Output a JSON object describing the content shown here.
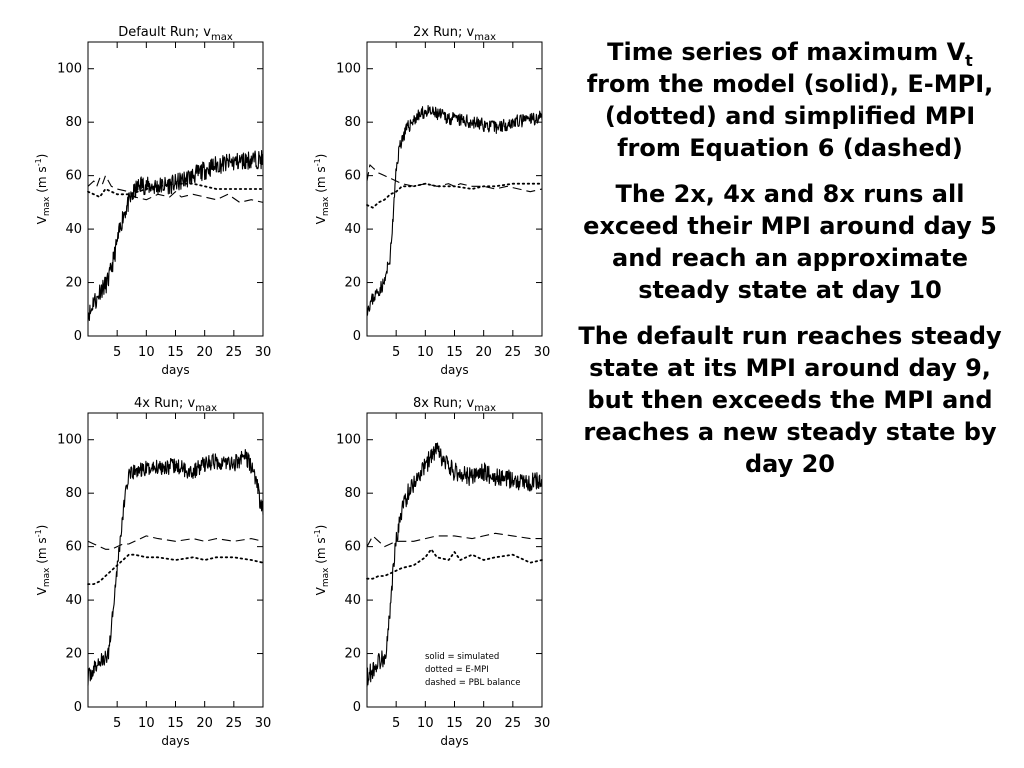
{
  "chart_data": [
    {
      "type": "line",
      "title": "Default Run; v",
      "title_sub": "max",
      "xlabel": "days",
      "ylabel": "V",
      "ylabel_sub": "max",
      "ylabel_units": "(m s",
      "ylabel_units_sup": "-1",
      "ylabel_units_end": ")",
      "xlim": [
        0,
        30
      ],
      "ylim": [
        0,
        110
      ],
      "xticks": [
        5,
        10,
        15,
        20,
        25,
        30
      ],
      "yticks": [
        0,
        20,
        40,
        60,
        80,
        100
      ],
      "series": [
        {
          "style": "solid",
          "noise": 3.5,
          "seed": 11,
          "x": [
            0,
            0.5,
            1,
            1.5,
            2,
            3,
            3.5,
            4,
            5,
            6,
            7,
            8,
            9,
            10,
            12,
            15,
            18,
            20,
            22,
            25,
            28,
            30
          ],
          "y": [
            9,
            9,
            14,
            13,
            17,
            19,
            21,
            25,
            35,
            45,
            50,
            54,
            57,
            56,
            56,
            57,
            60,
            62,
            64,
            65,
            66,
            66
          ]
        },
        {
          "style": "dotted",
          "noise": 0,
          "seed": 0,
          "x": [
            0,
            1,
            2,
            3,
            5,
            7,
            10,
            12,
            15,
            18,
            20,
            22,
            25,
            30
          ],
          "y": [
            54,
            53,
            52,
            55,
            53,
            53,
            55,
            56,
            57,
            57,
            56,
            55,
            55,
            55
          ]
        },
        {
          "style": "dashed",
          "noise": 0,
          "seed": 0,
          "x": [
            0,
            1,
            1.5,
            2,
            2.5,
            3,
            4,
            5,
            7,
            8,
            10,
            12,
            14,
            15,
            16,
            18,
            20,
            22,
            24,
            26,
            28,
            30
          ],
          "y": [
            56,
            58,
            56,
            59,
            57,
            60,
            56,
            55,
            54,
            52,
            51,
            53,
            52,
            54,
            52,
            53,
            52,
            51,
            53,
            50,
            51,
            50
          ]
        }
      ]
    },
    {
      "type": "line",
      "title": "2x Run; v",
      "title_sub": "max",
      "xlabel": "days",
      "ylabel": "V",
      "ylabel_sub": "max",
      "ylabel_units": "(m s",
      "ylabel_units_sup": "-1",
      "ylabel_units_end": ")",
      "xlim": [
        0,
        30
      ],
      "ylim": [
        0,
        110
      ],
      "xticks": [
        5,
        10,
        15,
        20,
        25,
        30
      ],
      "yticks": [
        0,
        20,
        40,
        60,
        80,
        100
      ],
      "series": [
        {
          "style": "solid",
          "noise": 2.5,
          "seed": 23,
          "x": [
            0,
            1,
            2,
            3,
            4,
            4.5,
            5,
            5.5,
            6,
            7,
            8,
            10,
            12,
            15,
            18,
            20,
            22,
            25,
            28,
            30
          ],
          "y": [
            10,
            14,
            17,
            20,
            30,
            45,
            62,
            70,
            74,
            78,
            81,
            84,
            83,
            81,
            80,
            79,
            78,
            80,
            81,
            82
          ]
        },
        {
          "style": "dotted",
          "noise": 0,
          "seed": 0,
          "x": [
            0,
            1,
            2,
            3,
            4,
            5,
            6,
            8,
            10,
            12,
            15,
            18,
            20,
            22,
            25,
            28,
            30
          ],
          "y": [
            49,
            48,
            50,
            51,
            53,
            54,
            56,
            56,
            57,
            56,
            56,
            55,
            56,
            56,
            57,
            57,
            57
          ]
        },
        {
          "style": "dashed",
          "noise": 0,
          "seed": 0,
          "x": [
            0,
            0.5,
            1,
            2,
            3,
            4,
            5,
            6,
            8,
            10,
            12,
            14,
            15,
            16,
            18,
            20,
            22,
            24,
            26,
            28,
            30
          ],
          "y": [
            58,
            64,
            63,
            61,
            60,
            59,
            58,
            57,
            56,
            57,
            56,
            57,
            56,
            57,
            56,
            56,
            55,
            56,
            55,
            54,
            55
          ]
        }
      ]
    },
    {
      "type": "line",
      "title": "4x Run; v",
      "title_sub": "max",
      "xlabel": "days",
      "ylabel": "V",
      "ylabel_sub": "max",
      "ylabel_units": "(m s",
      "ylabel_units_sup": "-1",
      "ylabel_units_end": ")",
      "xlim": [
        0,
        30
      ],
      "ylim": [
        0,
        110
      ],
      "xticks": [
        5,
        10,
        15,
        20,
        25,
        30
      ],
      "yticks": [
        0,
        20,
        40,
        60,
        80,
        100
      ],
      "series": [
        {
          "style": "solid",
          "noise": 3,
          "seed": 37,
          "x": [
            0,
            1,
            2,
            3,
            3.5,
            4,
            4.5,
            5,
            5.5,
            6,
            6.5,
            7,
            8,
            10,
            12,
            15,
            18,
            20,
            22,
            25,
            27,
            28,
            29,
            29.5,
            30
          ],
          "y": [
            11,
            14,
            17,
            18,
            20,
            30,
            42,
            52,
            62,
            72,
            82,
            86,
            88,
            89,
            90,
            90,
            88,
            91,
            92,
            91,
            94,
            90,
            84,
            76,
            74
          ]
        },
        {
          "style": "dotted",
          "noise": 0,
          "seed": 0,
          "x": [
            0,
            1,
            2,
            3,
            4,
            5,
            6,
            7,
            8,
            10,
            12,
            15,
            18,
            20,
            22,
            25,
            28,
            30
          ],
          "y": [
            46,
            46,
            47,
            49,
            51,
            53,
            55,
            57,
            57,
            56,
            56,
            55,
            56,
            55,
            56,
            56,
            55,
            54
          ]
        },
        {
          "style": "dashed",
          "noise": 0,
          "seed": 0,
          "x": [
            0,
            1,
            2,
            3,
            4,
            5,
            6,
            7,
            8,
            10,
            12,
            15,
            18,
            20,
            22,
            25,
            28,
            30
          ],
          "y": [
            62,
            61,
            60,
            59,
            59,
            60,
            61,
            61,
            62,
            64,
            63,
            62,
            63,
            62,
            63,
            62,
            63,
            62
          ]
        }
      ]
    },
    {
      "type": "line",
      "title": "8x Run; v",
      "title_sub": "max",
      "xlabel": "days",
      "ylabel": "V",
      "ylabel_sub": "max",
      "ylabel_units": "(m s",
      "ylabel_units_sup": "-1",
      "ylabel_units_end": ")",
      "xlim": [
        0,
        30
      ],
      "ylim": [
        0,
        110
      ],
      "xticks": [
        5,
        10,
        15,
        20,
        25,
        30
      ],
      "yticks": [
        0,
        20,
        40,
        60,
        80,
        100
      ],
      "legend": {
        "placement": "bottom-right",
        "lines": [
          "solid = simulated",
          "dotted = E-MPI",
          "dashed = PBL balance"
        ]
      },
      "series": [
        {
          "style": "solid",
          "noise": 3.5,
          "seed": 53,
          "x": [
            0,
            1,
            2,
            3,
            3.5,
            4,
            4.5,
            5,
            5.5,
            6,
            7,
            8,
            10,
            11,
            12,
            13,
            15,
            18,
            20,
            22,
            25,
            28,
            30
          ],
          "y": [
            11,
            14,
            17,
            19,
            24,
            38,
            52,
            62,
            68,
            74,
            80,
            84,
            90,
            94,
            96,
            92,
            88,
            86,
            88,
            86,
            85,
            84,
            85
          ]
        },
        {
          "style": "dotted",
          "noise": 0,
          "seed": 0,
          "x": [
            0,
            1,
            2,
            3,
            4,
            5,
            6,
            8,
            10,
            11,
            12,
            14,
            15,
            16,
            18,
            20,
            22,
            25,
            28,
            30
          ],
          "y": [
            48,
            48,
            49,
            49,
            50,
            51,
            52,
            53,
            56,
            59,
            56,
            55,
            58,
            55,
            57,
            55,
            56,
            57,
            54,
            55
          ]
        },
        {
          "style": "dashed",
          "noise": 0,
          "seed": 0,
          "x": [
            0,
            1,
            2,
            3,
            4,
            5,
            6,
            8,
            10,
            12,
            15,
            18,
            20,
            22,
            25,
            28,
            30
          ],
          "y": [
            60,
            64,
            62,
            60,
            61,
            62,
            62,
            62,
            63,
            64,
            64,
            63,
            64,
            65,
            64,
            63,
            63
          ]
        }
      ]
    }
  ],
  "text_panel": {
    "paragraph1_part1": "Time series of maximum V",
    "paragraph1_sub": "t",
    "paragraph1_part2": " from the model (solid), E-MPI, (dotted) and simplified MPI from Equation 6 (dashed)",
    "paragraph2": "The 2x, 4x and 8x runs all exceed their MPI around day 5 and reach an approximate steady state at day 10",
    "paragraph3": "The default run reaches steady state at its MPI around day 9, but then exceeds the MPI and reaches a new steady state by day 20"
  }
}
